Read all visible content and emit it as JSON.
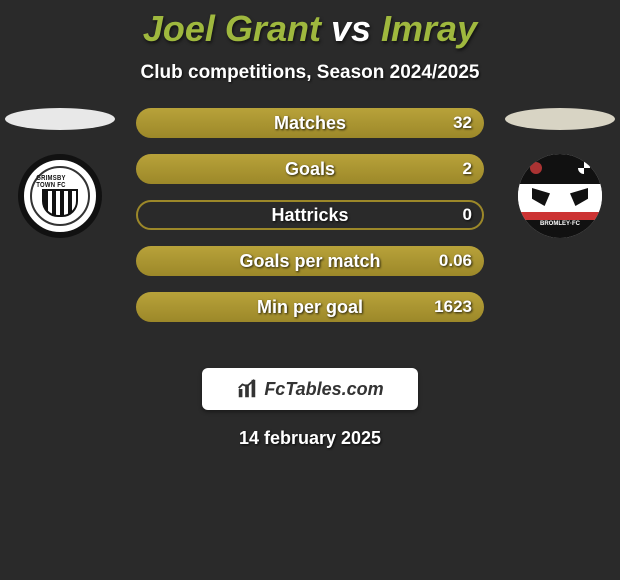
{
  "title": {
    "player1": "Joel Grant",
    "vs": "vs",
    "player2": "Imray"
  },
  "subtitle": "Club competitions, Season 2024/2025",
  "colors": {
    "accent": "#9fb83e",
    "bar_fill": "#b8a23a",
    "bar_fill_dark": "#9c8829",
    "shadow_left": "#e8e8e8",
    "shadow_right": "#d8d4c4",
    "background": "#2a2a2a",
    "text": "#ffffff"
  },
  "stats": [
    {
      "label": "Matches",
      "value": "32",
      "fill_pct": 100
    },
    {
      "label": "Goals",
      "value": "2",
      "fill_pct": 100
    },
    {
      "label": "Hattricks",
      "value": "0",
      "fill_pct": 0
    },
    {
      "label": "Goals per match",
      "value": "0.06",
      "fill_pct": 100
    },
    {
      "label": "Min per goal",
      "value": "1623",
      "fill_pct": 100
    }
  ],
  "brand": "FcTables.com",
  "date": "14 february 2025",
  "crest_left_text": "GRIMSBY TOWN FC",
  "crest_right_text": "BROMLEY·FC"
}
